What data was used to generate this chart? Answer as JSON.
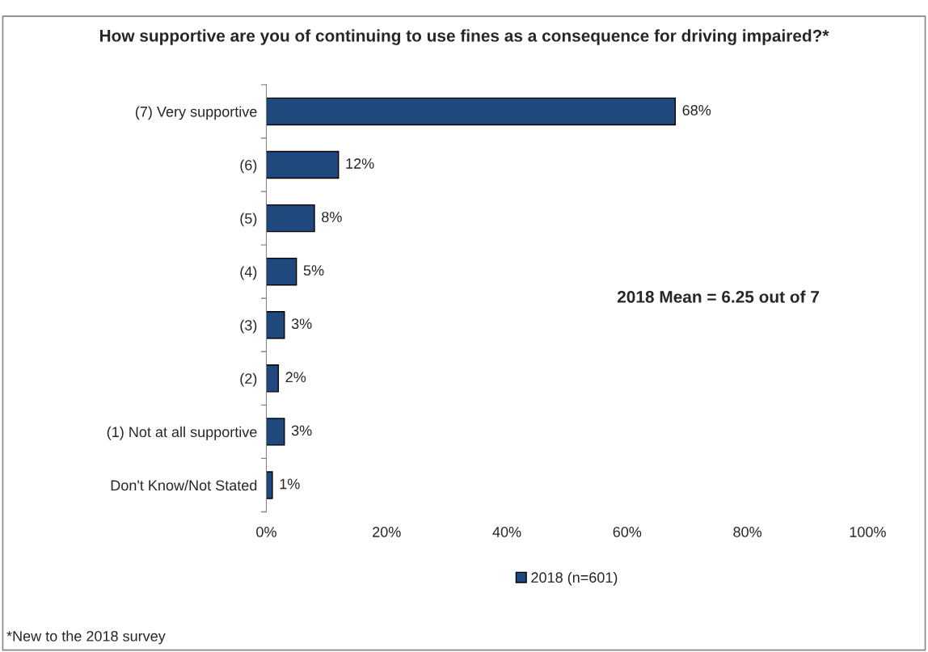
{
  "chart_data": {
    "type": "bar",
    "orientation": "horizontal",
    "title": "How supportive are you of continuing to use fines as a consequence for driving impaired?*",
    "categories": [
      "(7) Very supportive",
      "(6)",
      "(5)",
      "(4)",
      "(3)",
      "(2)",
      "(1) Not at all supportive",
      "Don't Know/Not Stated"
    ],
    "series": [
      {
        "name": "2018 (n=601)",
        "color": "#1f497d",
        "values": [
          68,
          12,
          8,
          5,
          3,
          2,
          3,
          1
        ],
        "value_labels": [
          "68%",
          "12%",
          "8%",
          "5%",
          "3%",
          "2%",
          "3%",
          "1%"
        ]
      }
    ],
    "xlim": [
      0,
      100
    ],
    "xticks": [
      {
        "value": 0,
        "label": "0%"
      },
      {
        "value": 20,
        "label": "20%"
      },
      {
        "value": 40,
        "label": "40%"
      },
      {
        "value": 60,
        "label": "60%"
      },
      {
        "value": 80,
        "label": "80%"
      },
      {
        "value": 100,
        "label": "100%"
      }
    ],
    "annotations": [
      "2018 Mean = 6.25 out of 7",
      "*New to the 2018 survey"
    ],
    "legend": "bottom",
    "grid": false
  }
}
